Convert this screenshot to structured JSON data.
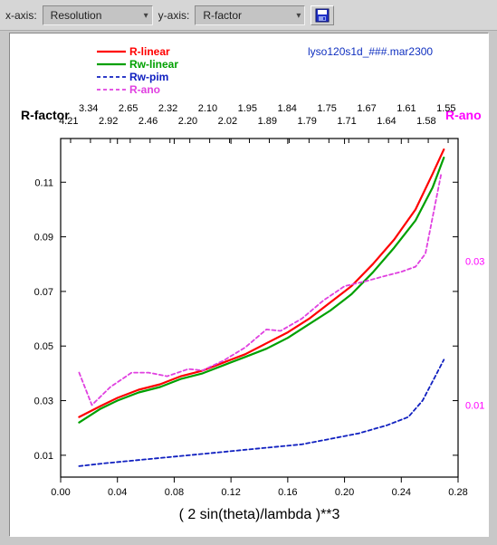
{
  "toolbar": {
    "x_label": "x-axis:",
    "x_value": "Resolution",
    "y_label": "y-axis:",
    "y_value": "R-factor"
  },
  "chart": {
    "file_label": "lyso120s1d_###.mar2300",
    "file_label_color": "#1030c0",
    "legend": [
      {
        "name": "R-linear",
        "color": "#ff0000",
        "dash": "",
        "width": 2.2
      },
      {
        "name": "Rw-linear",
        "color": "#00a000",
        "dash": "",
        "width": 2.2
      },
      {
        "name": "Rw-pim",
        "color": "#1020c0",
        "dash": "4 3",
        "width": 1.8
      },
      {
        "name": "R-ano",
        "color": "#e040e0",
        "dash": "4 3",
        "width": 1.8
      }
    ],
    "y_title_left": {
      "text": "R-factor",
      "color": "#000000",
      "fontsize": 14,
      "weight": "bold"
    },
    "y_title_right": {
      "text": "R-ano",
      "color": "#ff00ff",
      "fontsize": 14,
      "weight": "bold"
    },
    "x_title": {
      "text": "( 2 sin(theta)/lambda )**3",
      "color": "#000000",
      "fontsize": 16
    },
    "top_axis_upper": [
      "3.34",
      "2.65",
      "2.32",
      "2.10",
      "1.95",
      "1.84",
      "1.75",
      "1.67",
      "1.61",
      "1.55"
    ],
    "top_axis_lower": [
      "4.21",
      "2.92",
      "2.46",
      "2.20",
      "2.02",
      "1.89",
      "1.79",
      "1.71",
      "1.64",
      "1.58"
    ],
    "x_ticks": [
      0.0,
      0.04,
      0.08,
      0.12,
      0.16,
      0.2,
      0.24,
      0.28
    ],
    "xlim": [
      0.0,
      0.28
    ],
    "y_left_ticks": [
      0.01,
      0.03,
      0.05,
      0.07,
      0.09,
      0.11
    ],
    "ylim_left": [
      0.002,
      0.126
    ],
    "y_right_ticks": [
      0.01,
      0.03
    ],
    "ylim_right": [
      0.0,
      0.047
    ],
    "series": {
      "R_linear": {
        "color": "#ff0000",
        "dash": "",
        "width": 2.2,
        "axis": "left",
        "pts": [
          [
            0.013,
            0.024
          ],
          [
            0.028,
            0.028
          ],
          [
            0.04,
            0.031
          ],
          [
            0.055,
            0.034
          ],
          [
            0.07,
            0.036
          ],
          [
            0.085,
            0.039
          ],
          [
            0.1,
            0.041
          ],
          [
            0.115,
            0.044
          ],
          [
            0.13,
            0.047
          ],
          [
            0.145,
            0.051
          ],
          [
            0.16,
            0.055
          ],
          [
            0.175,
            0.06
          ],
          [
            0.19,
            0.066
          ],
          [
            0.205,
            0.072
          ],
          [
            0.22,
            0.08
          ],
          [
            0.235,
            0.089
          ],
          [
            0.25,
            0.1
          ],
          [
            0.262,
            0.113
          ],
          [
            0.27,
            0.122
          ]
        ]
      },
      "Rw_linear": {
        "color": "#00a000",
        "dash": "",
        "width": 2.2,
        "axis": "left",
        "pts": [
          [
            0.013,
            0.022
          ],
          [
            0.028,
            0.027
          ],
          [
            0.04,
            0.03
          ],
          [
            0.055,
            0.033
          ],
          [
            0.07,
            0.035
          ],
          [
            0.085,
            0.038
          ],
          [
            0.1,
            0.04
          ],
          [
            0.115,
            0.043
          ],
          [
            0.13,
            0.046
          ],
          [
            0.145,
            0.049
          ],
          [
            0.16,
            0.053
          ],
          [
            0.175,
            0.058
          ],
          [
            0.19,
            0.063
          ],
          [
            0.205,
            0.069
          ],
          [
            0.22,
            0.077
          ],
          [
            0.235,
            0.086
          ],
          [
            0.25,
            0.096
          ],
          [
            0.262,
            0.108
          ],
          [
            0.27,
            0.119
          ]
        ]
      },
      "Rw_pim": {
        "color": "#1020c0",
        "dash": "4 3",
        "width": 1.8,
        "axis": "left",
        "pts": [
          [
            0.013,
            0.006
          ],
          [
            0.03,
            0.007
          ],
          [
            0.05,
            0.008
          ],
          [
            0.07,
            0.009
          ],
          [
            0.09,
            0.01
          ],
          [
            0.11,
            0.011
          ],
          [
            0.13,
            0.012
          ],
          [
            0.15,
            0.013
          ],
          [
            0.17,
            0.014
          ],
          [
            0.19,
            0.016
          ],
          [
            0.21,
            0.018
          ],
          [
            0.23,
            0.021
          ],
          [
            0.245,
            0.024
          ],
          [
            0.255,
            0.03
          ],
          [
            0.265,
            0.04
          ],
          [
            0.27,
            0.045
          ]
        ]
      },
      "R_ano": {
        "color": "#e040e0",
        "dash": "4 3",
        "width": 1.8,
        "axis": "right",
        "pts": [
          [
            0.013,
            0.0145
          ],
          [
            0.022,
            0.01
          ],
          [
            0.035,
            0.0125
          ],
          [
            0.05,
            0.0145
          ],
          [
            0.062,
            0.0145
          ],
          [
            0.075,
            0.014
          ],
          [
            0.09,
            0.015
          ],
          [
            0.1,
            0.0148
          ],
          [
            0.115,
            0.0162
          ],
          [
            0.13,
            0.018
          ],
          [
            0.145,
            0.0205
          ],
          [
            0.155,
            0.0203
          ],
          [
            0.17,
            0.022
          ],
          [
            0.185,
            0.0245
          ],
          [
            0.2,
            0.0265
          ],
          [
            0.215,
            0.0272
          ],
          [
            0.23,
            0.028
          ],
          [
            0.24,
            0.0285
          ],
          [
            0.25,
            0.0292
          ],
          [
            0.257,
            0.031
          ],
          [
            0.264,
            0.038
          ],
          [
            0.268,
            0.042
          ]
        ]
      }
    },
    "styling": {
      "plot_bg": "#ffffff",
      "axis_color": "#000000",
      "tick_font": 11,
      "top_tick_font": 11,
      "right_tick_color": "#ff00ff"
    }
  }
}
